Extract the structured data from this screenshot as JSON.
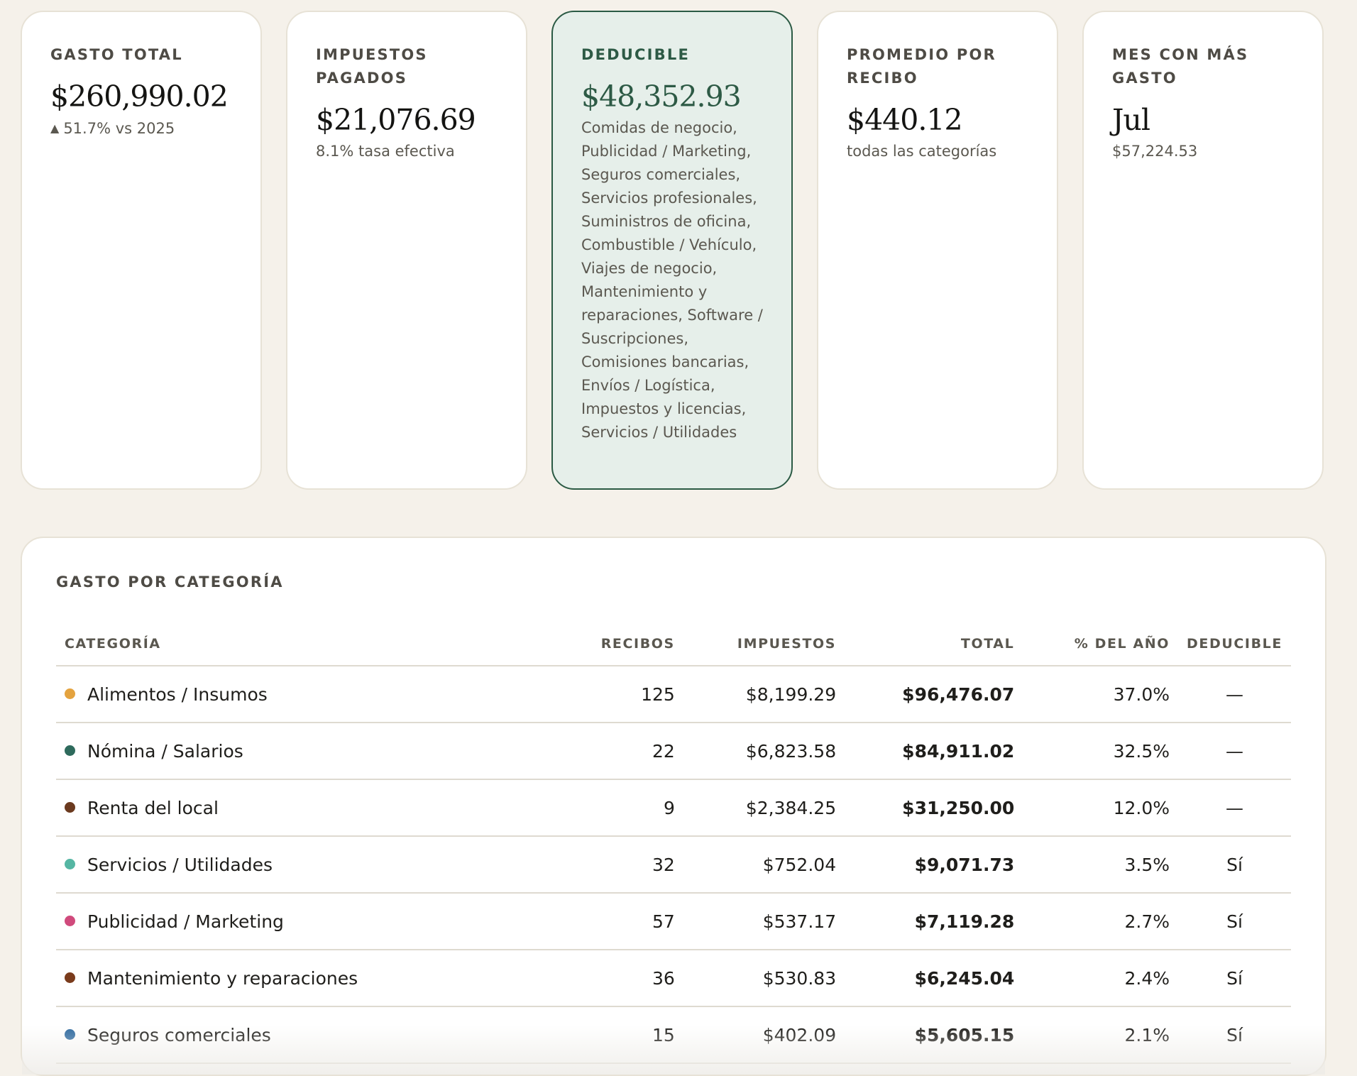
{
  "cards": [
    {
      "label": "GASTO TOTAL",
      "value": "$260,990.02",
      "trend_icon": "triangle-up-icon",
      "sub": "51.7% vs 2025"
    },
    {
      "label": "IMPUESTOS PAGADOS",
      "value": "$21,076.69",
      "sub": "8.1% tasa efectiva"
    },
    {
      "label": "DEDUCIBLE",
      "value": "$48,352.93",
      "sub": "Comidas de negocio, Publicidad / Marketing, Seguros comerciales, Servicios profesionales, Suministros de oficina, Combustible / Vehículo, Viajes de negocio, Mantenimiento y reparaciones, Software / Suscripciones, Comisiones bancarias, Envíos / Logística, Impuestos y licencias, Servicios / Utilidades"
    },
    {
      "label": "PROMEDIO POR RECIBO",
      "value": "$440.12",
      "sub": "todas las categorías"
    },
    {
      "label": "MES CON MÁS GASTO",
      "value": "Jul",
      "sub": "$57,224.53"
    }
  ],
  "colors": {
    "accent_green": "#2d5a45",
    "highlight_bg": "#e6efea"
  },
  "category_table": {
    "title": "GASTO POR CATEGORÍA",
    "headers": {
      "category": "CATEGORÍA",
      "receipts": "RECIBOS",
      "taxes": "IMPUESTOS",
      "total": "TOTAL",
      "year_pct": "% DEL AÑO",
      "deductible": "DEDUCIBLE"
    },
    "rows": [
      {
        "category": "Alimentos / Insumos",
        "color": "#e4a33f",
        "receipts": "125",
        "taxes": "$8,199.29",
        "total": "$96,476.07",
        "year_pct": "37.0%",
        "deductible": "—"
      },
      {
        "category": "Nómina / Salarios",
        "color": "#2e6a5c",
        "receipts": "22",
        "taxes": "$6,823.58",
        "total": "$84,911.02",
        "year_pct": "32.5%",
        "deductible": "—"
      },
      {
        "category": "Renta del local",
        "color": "#6b3a1f",
        "receipts": "9",
        "taxes": "$2,384.25",
        "total": "$31,250.00",
        "year_pct": "12.0%",
        "deductible": "—"
      },
      {
        "category": "Servicios / Utilidades",
        "color": "#55b6a3",
        "receipts": "32",
        "taxes": "$752.04",
        "total": "$9,071.73",
        "year_pct": "3.5%",
        "deductible": "Sí"
      },
      {
        "category": "Publicidad / Marketing",
        "color": "#d04a7c",
        "receipts": "57",
        "taxes": "$537.17",
        "total": "$7,119.28",
        "year_pct": "2.7%",
        "deductible": "Sí"
      },
      {
        "category": "Mantenimiento y reparaciones",
        "color": "#7a3b1c",
        "receipts": "36",
        "taxes": "$530.83",
        "total": "$6,245.04",
        "year_pct": "2.4%",
        "deductible": "Sí"
      },
      {
        "category": "Seguros comerciales",
        "color": "#2f6aa0",
        "receipts": "15",
        "taxes": "$402.09",
        "total": "$5,605.15",
        "year_pct": "2.1%",
        "deductible": "Sí"
      }
    ]
  }
}
